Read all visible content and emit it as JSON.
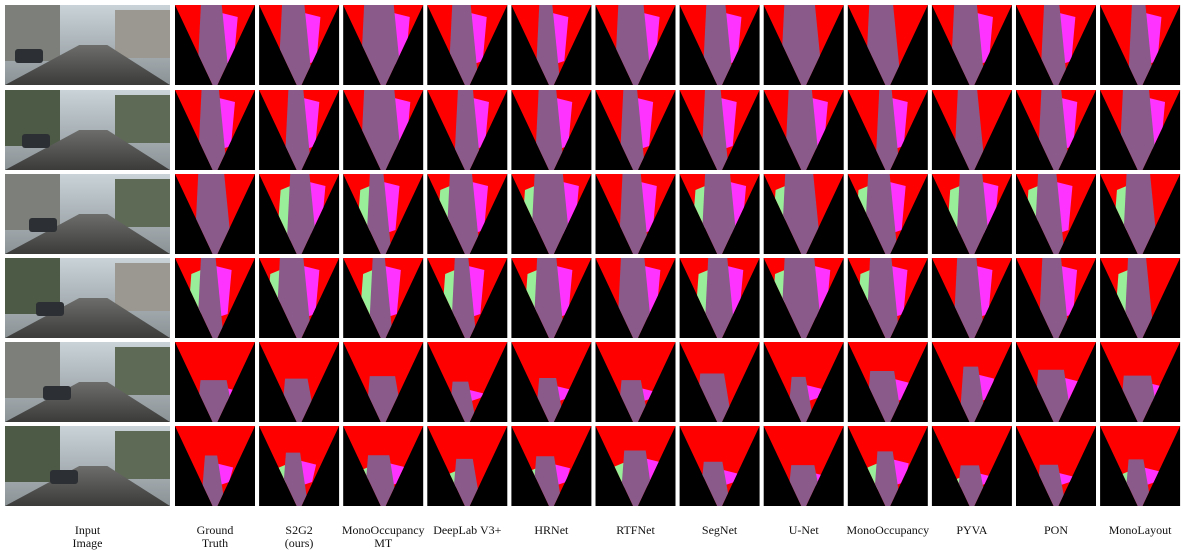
{
  "columns": [
    [
      "Input",
      "Image"
    ],
    [
      "Ground",
      "Truth"
    ],
    [
      "S2G2",
      "(ours)"
    ],
    [
      "MonoOccupancy",
      "MT"
    ],
    [
      "DeepLab V3+"
    ],
    [
      "HRNet"
    ],
    [
      "RTFNet"
    ],
    [
      "SegNet"
    ],
    [
      "U-Net"
    ],
    [
      "MonoOccupancy"
    ],
    [
      "PYVA"
    ],
    [
      "PON"
    ],
    [
      "MonoLayout"
    ]
  ]
}
